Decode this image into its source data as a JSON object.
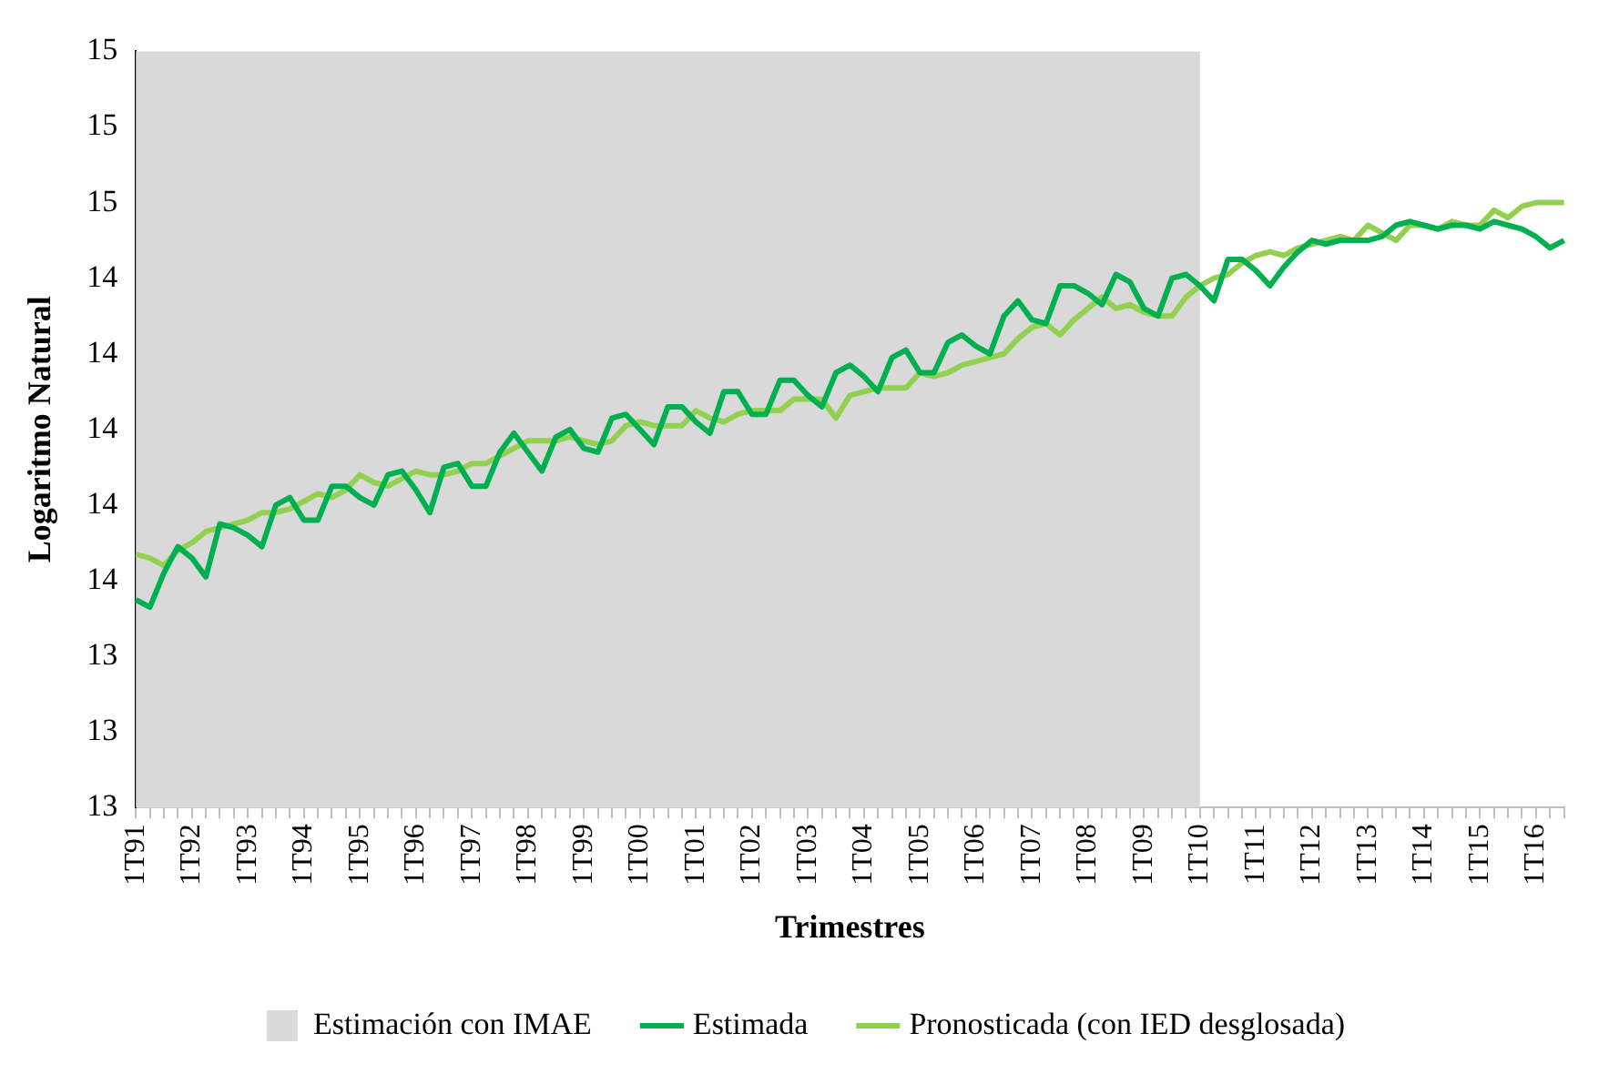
{
  "chart_data": {
    "type": "line",
    "xlabel": "Trimestres",
    "ylabel": "Logaritmo Natural",
    "categories": [
      "1T91",
      null,
      null,
      null,
      "1T92",
      null,
      null,
      null,
      "1T93",
      null,
      null,
      null,
      "1T94",
      null,
      null,
      null,
      "1T95",
      null,
      null,
      null,
      "1T96",
      null,
      null,
      null,
      "1T97",
      null,
      null,
      null,
      "1T98",
      null,
      null,
      null,
      "1T99",
      null,
      null,
      null,
      "1T00",
      null,
      null,
      null,
      "1T01",
      null,
      null,
      null,
      "1T02",
      null,
      null,
      null,
      "1T03",
      null,
      null,
      null,
      "1T04",
      null,
      null,
      null,
      "1T05",
      null,
      null,
      null,
      "1T06",
      null,
      null,
      null,
      "1T07",
      null,
      null,
      null,
      "1T08",
      null,
      null,
      null,
      "1T09",
      null,
      null,
      null,
      "1T10",
      null,
      null,
      null,
      "1T11",
      null,
      null,
      null,
      "1T12",
      null,
      null,
      null,
      "1T13",
      null,
      null,
      null,
      "1T14",
      null,
      null,
      null,
      "1T15",
      null,
      null,
      null,
      "1T16",
      null,
      null
    ],
    "series": [
      {
        "name": "Estimada",
        "color": "#00b050",
        "values": [
          13.55,
          13.53,
          13.62,
          13.69,
          13.66,
          13.61,
          13.75,
          13.74,
          13.72,
          13.69,
          13.8,
          13.82,
          13.76,
          13.76,
          13.85,
          13.85,
          13.82,
          13.8,
          13.88,
          13.89,
          13.84,
          13.78,
          13.9,
          13.91,
          13.85,
          13.85,
          13.94,
          13.99,
          13.94,
          13.89,
          13.98,
          14.0,
          13.95,
          13.94,
          14.03,
          14.04,
          14.0,
          13.96,
          14.06,
          14.06,
          14.02,
          13.99,
          14.1,
          14.1,
          14.04,
          14.04,
          14.13,
          14.13,
          14.09,
          14.06,
          14.15,
          14.17,
          14.14,
          14.1,
          14.19,
          14.21,
          14.15,
          14.15,
          14.23,
          14.25,
          14.22,
          14.2,
          14.3,
          14.34,
          14.29,
          14.28,
          14.38,
          14.38,
          14.36,
          14.33,
          14.41,
          14.39,
          14.32,
          14.3,
          14.4,
          14.41,
          14.38,
          14.34,
          14.45,
          14.45,
          14.42,
          14.38,
          14.43,
          14.47,
          14.5,
          14.49,
          14.5,
          14.5,
          14.5,
          14.51,
          14.54,
          14.55,
          14.54,
          14.53,
          14.54,
          14.54,
          14.53,
          14.55,
          14.54,
          14.53,
          14.51,
          14.48,
          14.5
        ]
      },
      {
        "name": "Pronosticada (con IED desglosada)",
        "color": "#92d050",
        "values": [
          13.67,
          13.66,
          13.64,
          13.68,
          13.7,
          13.73,
          13.74,
          13.75,
          13.76,
          13.78,
          13.78,
          13.79,
          13.81,
          13.83,
          13.82,
          13.84,
          13.88,
          13.86,
          13.85,
          13.87,
          13.89,
          13.88,
          13.88,
          13.89,
          13.91,
          13.91,
          13.93,
          13.95,
          13.97,
          13.97,
          13.97,
          13.98,
          13.97,
          13.96,
          13.97,
          14.01,
          14.02,
          14.01,
          14.01,
          14.01,
          14.05,
          14.03,
          14.02,
          14.04,
          14.05,
          14.05,
          14.05,
          14.08,
          14.08,
          14.08,
          14.03,
          14.09,
          14.1,
          14.11,
          14.11,
          14.11,
          14.15,
          14.14,
          14.15,
          14.17,
          14.18,
          14.19,
          14.2,
          14.24,
          14.27,
          14.28,
          14.25,
          14.29,
          14.32,
          14.35,
          14.32,
          14.33,
          14.31,
          14.3,
          14.3,
          14.35,
          14.38,
          14.4,
          14.41,
          14.44,
          14.46,
          14.47,
          14.46,
          14.48,
          14.49,
          14.5,
          14.51,
          14.5,
          14.54,
          14.52,
          14.5,
          14.54,
          14.54,
          14.53,
          14.55,
          14.54,
          14.54,
          14.58,
          14.56,
          14.59,
          14.6,
          14.6,
          14.6
        ]
      }
    ],
    "bands": [
      {
        "axis": "x",
        "from": "1T91",
        "to": "1T10",
        "label": "Estimación con IMAE",
        "color": "#d9d9d9"
      }
    ],
    "ylim": [
      13,
      15
    ],
    "yticks": [
      13,
      {
        "value": 13.2,
        "label": "13"
      },
      {
        "value": 13.4,
        "label": "13"
      },
      {
        "value": 13.6,
        "label": "14"
      },
      {
        "value": 13.8,
        "label": "14"
      },
      14,
      {
        "value": 14.2,
        "label": "14"
      },
      {
        "value": 14.4,
        "label": "14"
      },
      {
        "value": 14.6,
        "label": "15"
      },
      {
        "value": 14.8,
        "label": "15"
      },
      15
    ],
    "grid": false,
    "legend": "bottom"
  }
}
